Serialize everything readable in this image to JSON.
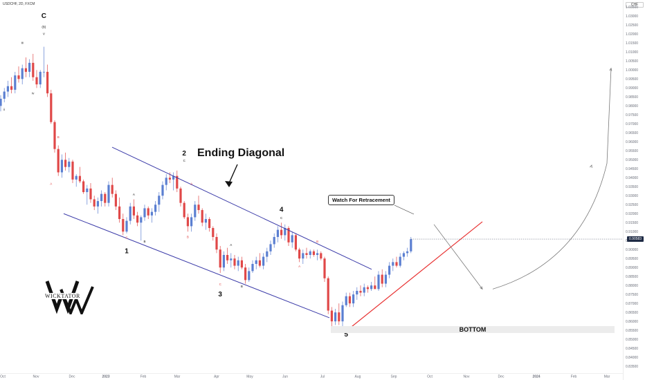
{
  "symbol_label": "USDCHF, 2D, FXCM",
  "currency_label": "CHF",
  "price_tag": "0.90583",
  "annotations": {
    "title": "Ending Diagonal",
    "watch_box": "Watch For Retracement",
    "bottom_zone": "BOTTOM",
    "logo_text": "WICKTATOR"
  },
  "colors": {
    "bull": "#5b7fd1",
    "bear": "#e04848",
    "channel": "#3a3aa8",
    "support": "#e83030",
    "projection": "#777777"
  },
  "chart_data": {
    "type": "candlestick",
    "xlabel": "",
    "ylabel": "",
    "x_tick_labels": [
      "Oct",
      "Nov",
      "Dec",
      "2023",
      "Feb",
      "Mar",
      "Apr",
      "May",
      "Jun",
      "Jul",
      "Aug",
      "Sep",
      "Oct",
      "Nov",
      "Dec",
      "2024",
      "Feb",
      "Mar"
    ],
    "y_tick_labels": [
      "1.03500",
      "1.03000",
      "1.02500",
      "1.02000",
      "1.01500",
      "1.01000",
      "1.00500",
      "1.00000",
      "0.99500",
      "0.99000",
      "0.98500",
      "0.98000",
      "0.97500",
      "0.97000",
      "0.96500",
      "0.96000",
      "0.95500",
      "0.95000",
      "0.94500",
      "0.94000",
      "0.93500",
      "0.93000",
      "0.92500",
      "0.92000",
      "0.91500",
      "0.91000",
      "0.90500",
      "0.90000",
      "0.89500",
      "0.89000",
      "0.88500",
      "0.88000",
      "0.87500",
      "0.87000",
      "0.86500",
      "0.86000",
      "0.85500",
      "0.85000",
      "0.84500",
      "0.84000",
      "0.83500"
    ],
    "ylim": [
      0.8335,
      1.0365
    ],
    "current_price": 0.90583,
    "candles": [
      {
        "o": 0.98,
        "h": 0.986,
        "l": 0.977,
        "c": 0.984
      },
      {
        "o": 0.984,
        "h": 0.99,
        "l": 0.982,
        "c": 0.988
      },
      {
        "o": 0.988,
        "h": 0.994,
        "l": 0.985,
        "c": 0.991
      },
      {
        "o": 0.991,
        "h": 0.996,
        "l": 0.987,
        "c": 0.989
      },
      {
        "o": 0.989,
        "h": 0.999,
        "l": 0.987,
        "c": 0.997
      },
      {
        "o": 0.997,
        "h": 1.002,
        "l": 0.993,
        "c": 0.995
      },
      {
        "o": 0.995,
        "h": 1.003,
        "l": 0.992,
        "c": 1.001
      },
      {
        "o": 1.001,
        "h": 1.007,
        "l": 0.996,
        "c": 0.999
      },
      {
        "o": 0.999,
        "h": 1.006,
        "l": 0.996,
        "c": 1.004
      },
      {
        "o": 1.004,
        "h": 1.009,
        "l": 0.994,
        "c": 0.996
      },
      {
        "o": 0.996,
        "h": 1.0,
        "l": 0.99,
        "c": 0.992
      },
      {
        "o": 0.992,
        "h": 1.0,
        "l": 0.99,
        "c": 0.999
      },
      {
        "o": 0.999,
        "h": 1.013,
        "l": 0.996,
        "c": 0.999
      },
      {
        "o": 0.999,
        "h": 1.003,
        "l": 0.985,
        "c": 0.987
      },
      {
        "o": 0.987,
        "h": 0.989,
        "l": 0.97,
        "c": 0.971
      },
      {
        "o": 0.971,
        "h": 0.972,
        "l": 0.954,
        "c": 0.956
      },
      {
        "o": 0.956,
        "h": 0.958,
        "l": 0.941,
        "c": 0.943
      },
      {
        "o": 0.943,
        "h": 0.953,
        "l": 0.94,
        "c": 0.95
      },
      {
        "o": 0.95,
        "h": 0.954,
        "l": 0.944,
        "c": 0.946
      },
      {
        "o": 0.946,
        "h": 0.951,
        "l": 0.943,
        "c": 0.949
      },
      {
        "o": 0.949,
        "h": 0.95,
        "l": 0.937,
        "c": 0.939
      },
      {
        "o": 0.939,
        "h": 0.942,
        "l": 0.935,
        "c": 0.941
      },
      {
        "o": 0.941,
        "h": 0.946,
        "l": 0.937,
        "c": 0.938
      },
      {
        "o": 0.938,
        "h": 0.939,
        "l": 0.931,
        "c": 0.932
      },
      {
        "o": 0.932,
        "h": 0.936,
        "l": 0.925,
        "c": 0.934
      },
      {
        "o": 0.934,
        "h": 0.937,
        "l": 0.926,
        "c": 0.928
      },
      {
        "o": 0.928,
        "h": 0.93,
        "l": 0.922,
        "c": 0.924
      },
      {
        "o": 0.924,
        "h": 0.929,
        "l": 0.92,
        "c": 0.927
      },
      {
        "o": 0.927,
        "h": 0.933,
        "l": 0.924,
        "c": 0.931
      },
      {
        "o": 0.931,
        "h": 0.932,
        "l": 0.924,
        "c": 0.926
      },
      {
        "o": 0.926,
        "h": 0.938,
        "l": 0.924,
        "c": 0.936
      },
      {
        "o": 0.936,
        "h": 0.94,
        "l": 0.929,
        "c": 0.931
      },
      {
        "o": 0.931,
        "h": 0.933,
        "l": 0.922,
        "c": 0.924
      },
      {
        "o": 0.924,
        "h": 0.929,
        "l": 0.915,
        "c": 0.917
      },
      {
        "o": 0.917,
        "h": 0.92,
        "l": 0.908,
        "c": 0.91
      },
      {
        "o": 0.91,
        "h": 0.918,
        "l": 0.909,
        "c": 0.916
      },
      {
        "o": 0.916,
        "h": 0.926,
        "l": 0.914,
        "c": 0.924
      },
      {
        "o": 0.924,
        "h": 0.928,
        "l": 0.917,
        "c": 0.919
      },
      {
        "o": 0.919,
        "h": 0.921,
        "l": 0.913,
        "c": 0.915
      },
      {
        "o": 0.915,
        "h": 0.919,
        "l": 0.905,
        "c": 0.918
      },
      {
        "o": 0.918,
        "h": 0.925,
        "l": 0.916,
        "c": 0.923
      },
      {
        "o": 0.923,
        "h": 0.924,
        "l": 0.917,
        "c": 0.919
      },
      {
        "o": 0.919,
        "h": 0.923,
        "l": 0.915,
        "c": 0.921
      },
      {
        "o": 0.921,
        "h": 0.927,
        "l": 0.919,
        "c": 0.925
      },
      {
        "o": 0.925,
        "h": 0.932,
        "l": 0.921,
        "c": 0.93
      },
      {
        "o": 0.93,
        "h": 0.938,
        "l": 0.928,
        "c": 0.936
      },
      {
        "o": 0.936,
        "h": 0.942,
        "l": 0.933,
        "c": 0.94
      },
      {
        "o": 0.94,
        "h": 0.943,
        "l": 0.937,
        "c": 0.939
      },
      {
        "o": 0.939,
        "h": 0.943,
        "l": 0.933,
        "c": 0.941
      },
      {
        "o": 0.941,
        "h": 0.944,
        "l": 0.932,
        "c": 0.934
      },
      {
        "o": 0.934,
        "h": 0.935,
        "l": 0.924,
        "c": 0.926
      },
      {
        "o": 0.926,
        "h": 0.927,
        "l": 0.917,
        "c": 0.918
      },
      {
        "o": 0.918,
        "h": 0.92,
        "l": 0.91,
        "c": 0.913
      },
      {
        "o": 0.913,
        "h": 0.92,
        "l": 0.91,
        "c": 0.918
      },
      {
        "o": 0.918,
        "h": 0.927,
        "l": 0.916,
        "c": 0.925
      },
      {
        "o": 0.925,
        "h": 0.93,
        "l": 0.92,
        "c": 0.922
      },
      {
        "o": 0.922,
        "h": 0.923,
        "l": 0.913,
        "c": 0.915
      },
      {
        "o": 0.915,
        "h": 0.92,
        "l": 0.911,
        "c": 0.917
      },
      {
        "o": 0.917,
        "h": 0.918,
        "l": 0.91,
        "c": 0.912
      },
      {
        "o": 0.912,
        "h": 0.913,
        "l": 0.905,
        "c": 0.907
      },
      {
        "o": 0.907,
        "h": 0.909,
        "l": 0.898,
        "c": 0.9
      },
      {
        "o": 0.9,
        "h": 0.902,
        "l": 0.887,
        "c": 0.89
      },
      {
        "o": 0.89,
        "h": 0.899,
        "l": 0.888,
        "c": 0.897
      },
      {
        "o": 0.897,
        "h": 0.901,
        "l": 0.892,
        "c": 0.894
      },
      {
        "o": 0.894,
        "h": 0.898,
        "l": 0.89,
        "c": 0.895
      },
      {
        "o": 0.895,
        "h": 0.897,
        "l": 0.889,
        "c": 0.891
      },
      {
        "o": 0.891,
        "h": 0.896,
        "l": 0.888,
        "c": 0.894
      },
      {
        "o": 0.894,
        "h": 0.896,
        "l": 0.889,
        "c": 0.89
      },
      {
        "o": 0.89,
        "h": 0.892,
        "l": 0.881,
        "c": 0.883
      },
      {
        "o": 0.883,
        "h": 0.89,
        "l": 0.882,
        "c": 0.888
      },
      {
        "o": 0.888,
        "h": 0.894,
        "l": 0.887,
        "c": 0.892
      },
      {
        "o": 0.892,
        "h": 0.896,
        "l": 0.889,
        "c": 0.894
      },
      {
        "o": 0.894,
        "h": 0.898,
        "l": 0.89,
        "c": 0.891
      },
      {
        "o": 0.891,
        "h": 0.898,
        "l": 0.889,
        "c": 0.896
      },
      {
        "o": 0.896,
        "h": 0.901,
        "l": 0.893,
        "c": 0.899
      },
      {
        "o": 0.899,
        "h": 0.905,
        "l": 0.897,
        "c": 0.903
      },
      {
        "o": 0.903,
        "h": 0.909,
        "l": 0.901,
        "c": 0.907
      },
      {
        "o": 0.907,
        "h": 0.913,
        "l": 0.904,
        "c": 0.911
      },
      {
        "o": 0.911,
        "h": 0.915,
        "l": 0.906,
        "c": 0.908
      },
      {
        "o": 0.908,
        "h": 0.914,
        "l": 0.905,
        "c": 0.912
      },
      {
        "o": 0.912,
        "h": 0.913,
        "l": 0.902,
        "c": 0.904
      },
      {
        "o": 0.904,
        "h": 0.91,
        "l": 0.901,
        "c": 0.908
      },
      {
        "o": 0.908,
        "h": 0.909,
        "l": 0.899,
        "c": 0.9
      },
      {
        "o": 0.9,
        "h": 0.901,
        "l": 0.893,
        "c": 0.895
      },
      {
        "o": 0.895,
        "h": 0.9,
        "l": 0.892,
        "c": 0.898
      },
      {
        "o": 0.898,
        "h": 0.901,
        "l": 0.895,
        "c": 0.897
      },
      {
        "o": 0.897,
        "h": 0.9,
        "l": 0.895,
        "c": 0.899
      },
      {
        "o": 0.899,
        "h": 0.9,
        "l": 0.896,
        "c": 0.897
      },
      {
        "o": 0.897,
        "h": 0.9,
        "l": 0.894,
        "c": 0.898
      },
      {
        "o": 0.898,
        "h": 0.899,
        "l": 0.894,
        "c": 0.895
      },
      {
        "o": 0.895,
        "h": 0.896,
        "l": 0.882,
        "c": 0.884
      },
      {
        "o": 0.884,
        "h": 0.885,
        "l": 0.864,
        "c": 0.866
      },
      {
        "o": 0.866,
        "h": 0.868,
        "l": 0.857,
        "c": 0.86
      },
      {
        "o": 0.86,
        "h": 0.867,
        "l": 0.858,
        "c": 0.865
      },
      {
        "o": 0.865,
        "h": 0.87,
        "l": 0.858,
        "c": 0.86
      },
      {
        "o": 0.86,
        "h": 0.871,
        "l": 0.857,
        "c": 0.869
      },
      {
        "o": 0.869,
        "h": 0.876,
        "l": 0.868,
        "c": 0.874
      },
      {
        "o": 0.874,
        "h": 0.876,
        "l": 0.868,
        "c": 0.87
      },
      {
        "o": 0.87,
        "h": 0.877,
        "l": 0.868,
        "c": 0.875
      },
      {
        "o": 0.875,
        "h": 0.879,
        "l": 0.872,
        "c": 0.877
      },
      {
        "o": 0.877,
        "h": 0.88,
        "l": 0.874,
        "c": 0.876
      },
      {
        "o": 0.876,
        "h": 0.881,
        "l": 0.874,
        "c": 0.879
      },
      {
        "o": 0.879,
        "h": 0.88,
        "l": 0.876,
        "c": 0.878
      },
      {
        "o": 0.878,
        "h": 0.882,
        "l": 0.877,
        "c": 0.88
      },
      {
        "o": 0.88,
        "h": 0.885,
        "l": 0.878,
        "c": 0.878
      },
      {
        "o": 0.878,
        "h": 0.888,
        "l": 0.877,
        "c": 0.886
      },
      {
        "o": 0.886,
        "h": 0.889,
        "l": 0.879,
        "c": 0.881
      },
      {
        "o": 0.881,
        "h": 0.888,
        "l": 0.879,
        "c": 0.886
      },
      {
        "o": 0.886,
        "h": 0.893,
        "l": 0.884,
        "c": 0.891
      },
      {
        "o": 0.891,
        "h": 0.895,
        "l": 0.888,
        "c": 0.893
      },
      {
        "o": 0.893,
        "h": 0.896,
        "l": 0.89,
        "c": 0.891
      },
      {
        "o": 0.891,
        "h": 0.898,
        "l": 0.89,
        "c": 0.896
      },
      {
        "o": 0.896,
        "h": 0.899,
        "l": 0.894,
        "c": 0.898
      },
      {
        "o": 0.898,
        "h": 0.901,
        "l": 0.896,
        "c": 0.899
      },
      {
        "o": 0.899,
        "h": 0.907,
        "l": 0.898,
        "c": 0.9058
      }
    ],
    "wave_labels": [
      {
        "text": "C",
        "style": "big",
        "candle": 12,
        "price": 1.029
      },
      {
        "text": "(B)",
        "style": "small",
        "candle": 12,
        "price": 1.0235
      },
      {
        "text": "V",
        "style": "small",
        "candle": 12,
        "price": 1.0195
      },
      {
        "text": "iii",
        "style": "small",
        "candle": 6,
        "price": 1.0145
      },
      {
        "text": "iv",
        "style": "small",
        "candle": 9,
        "price": 0.9865
      },
      {
        "text": "ii",
        "style": "small",
        "candle": 1,
        "price": 0.9775
      },
      {
        "text": "B",
        "style": "red",
        "candle": 16,
        "price": 0.962
      },
      {
        "text": "A",
        "style": "red",
        "candle": 14,
        "price": 0.936
      },
      {
        "text": "A",
        "style": "small",
        "candle": 37,
        "price": 0.93
      },
      {
        "text": "C",
        "style": "red",
        "candle": 35,
        "price": 0.906
      },
      {
        "text": "B",
        "style": "small",
        "candle": 40,
        "price": 0.904
      },
      {
        "text": "1",
        "style": "big",
        "candle": 35,
        "price": 0.898
      },
      {
        "text": "2",
        "style": "big",
        "candle": 51,
        "price": 0.9525
      },
      {
        "text": "C",
        "style": "small",
        "candle": 51,
        "price": 0.949
      },
      {
        "text": "A",
        "style": "red",
        "candle": 53,
        "price": 0.936
      },
      {
        "text": "B",
        "style": "red",
        "candle": 52,
        "price": 0.9065
      },
      {
        "text": "A",
        "style": "small",
        "candle": 64,
        "price": 0.902
      },
      {
        "text": "C",
        "style": "red",
        "candle": 61,
        "price": 0.88
      },
      {
        "text": "B",
        "style": "small",
        "candle": 67,
        "price": 0.879
      },
      {
        "text": "3",
        "style": "big",
        "candle": 61,
        "price": 0.874
      },
      {
        "text": "4",
        "style": "big",
        "candle": 78,
        "price": 0.921
      },
      {
        "text": "C",
        "style": "small",
        "candle": 78,
        "price": 0.917
      },
      {
        "text": "A",
        "style": "red",
        "candle": 83,
        "price": 0.89
      },
      {
        "text": "B",
        "style": "red",
        "candle": 88,
        "price": 0.904
      },
      {
        "text": "C",
        "style": "red",
        "candle": 96,
        "price": 0.855
      },
      {
        "text": "5",
        "style": "big",
        "candle": 96,
        "price": 0.8515
      }
    ],
    "channel_upper": [
      [
        162,
        0.957
      ],
      [
        537,
        0.889
      ]
    ],
    "channel_lower": [
      [
        92,
        0.92
      ],
      [
        476,
        0.862
      ]
    ],
    "support_line": [
      [
        508,
        0.857
      ],
      [
        697,
        0.9155
      ]
    ],
    "projection_zigzag": [
      [
        627,
        0.914
      ],
      [
        697,
        0.878
      ]
    ],
    "projection_curve": [
      [
        712,
        0.878
      ],
      [
        883,
        1.001
      ]
    ],
    "bottom_zone_range": [
      0.8535,
      0.8575
    ]
  }
}
